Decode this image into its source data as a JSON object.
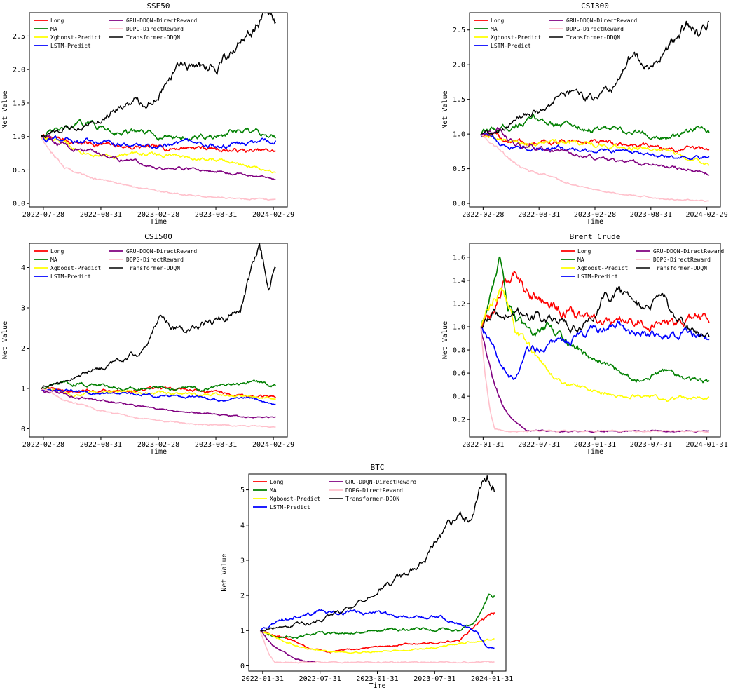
{
  "legend_entries": [
    "Long",
    "MA",
    "Xgboost-Predict",
    "LSTM-Predict",
    "GRU-DDQN-DirectReward",
    "DDPG-DirectReward",
    "Transformer-DDQN"
  ],
  "colors": {
    "Long": "#ff0000",
    "MA": "#008000",
    "Xgboost-Predict": "#ffff00",
    "LSTM-Predict": "#0000ff",
    "GRU-DDQN-DirectReward": "#800080",
    "DDPG-DirectReward": "#ffc0cb",
    "Transformer-DDQN": "#000000"
  },
  "chart_data": [
    {
      "type": "line",
      "title": "SSE50",
      "xlabel": "Time",
      "ylabel": "Net Value",
      "xticks": [
        "2022-07-28",
        "2022-08-31",
        "2023-02-28",
        "2023-08-31",
        "2024-02-29"
      ],
      "yticks": [
        "0.0",
        "0.5",
        "1.0",
        "1.5",
        "2.0",
        "2.5"
      ],
      "ylim": [
        -0.05,
        2.85
      ],
      "legend_loc": "upper-left",
      "series": [
        {
          "name": "Long",
          "x": [
            0,
            0.08,
            0.2,
            0.35,
            0.5,
            0.65,
            0.8,
            0.9,
            1
          ],
          "y": [
            1.0,
            0.95,
            0.9,
            0.85,
            0.82,
            0.85,
            0.8,
            0.78,
            0.78
          ]
        },
        {
          "name": "MA",
          "x": [
            0,
            0.1,
            0.2,
            0.3,
            0.4,
            0.55,
            0.7,
            0.8,
            0.9,
            1
          ],
          "y": [
            1.0,
            1.1,
            1.2,
            1.1,
            1.05,
            1.0,
            0.98,
            1.05,
            1.05,
            1.0
          ]
        },
        {
          "name": "Xgboost-Predict",
          "x": [
            0,
            0.1,
            0.2,
            0.3,
            0.45,
            0.6,
            0.75,
            0.85,
            1
          ],
          "y": [
            1.0,
            0.88,
            0.78,
            0.72,
            0.75,
            0.7,
            0.65,
            0.58,
            0.48
          ]
        },
        {
          "name": "LSTM-Predict",
          "x": [
            0,
            0.15,
            0.3,
            0.45,
            0.6,
            0.75,
            0.85,
            0.92,
            1
          ],
          "y": [
            1.0,
            0.95,
            0.88,
            0.85,
            0.88,
            0.85,
            0.88,
            0.92,
            0.92
          ]
        },
        {
          "name": "GRU-DDQN-DirectReward",
          "x": [
            0,
            0.1,
            0.2,
            0.3,
            0.45,
            0.55,
            0.7,
            0.85,
            1
          ],
          "y": [
            1.0,
            0.88,
            0.78,
            0.7,
            0.58,
            0.52,
            0.5,
            0.45,
            0.36
          ]
        },
        {
          "name": "DDPG-DirectReward",
          "x": [
            0,
            0.05,
            0.1,
            0.2,
            0.35,
            0.5,
            0.65,
            0.8,
            1
          ],
          "y": [
            1.0,
            0.75,
            0.55,
            0.4,
            0.28,
            0.18,
            0.12,
            0.08,
            0.05
          ]
        },
        {
          "name": "Transformer-DDQN",
          "x": [
            0,
            0.1,
            0.2,
            0.3,
            0.4,
            0.45,
            0.55,
            0.6,
            0.7,
            0.75,
            0.85,
            0.9,
            0.95,
            1
          ],
          "y": [
            1.0,
            1.1,
            1.2,
            1.4,
            1.55,
            1.45,
            1.9,
            2.05,
            2.0,
            2.1,
            2.3,
            2.55,
            2.8,
            2.75
          ]
        }
      ]
    },
    {
      "type": "line",
      "title": "CSI300",
      "xlabel": "Time",
      "ylabel": "Net Value",
      "xticks": [
        "2022-02-28",
        "2022-08-31",
        "2023-02-28",
        "2023-08-31",
        "2024-02-29"
      ],
      "yticks": [
        "0.0",
        "0.5",
        "1.0",
        "1.5",
        "2.0",
        "2.5"
      ],
      "ylim": [
        -0.05,
        2.75
      ],
      "legend_loc": "upper-left",
      "series": [
        {
          "name": "Long",
          "x": [
            0,
            0.1,
            0.25,
            0.4,
            0.55,
            0.7,
            0.85,
            1
          ],
          "y": [
            1.0,
            0.92,
            0.85,
            0.9,
            0.85,
            0.85,
            0.78,
            0.78
          ]
        },
        {
          "name": "MA",
          "x": [
            0,
            0.1,
            0.25,
            0.4,
            0.55,
            0.7,
            0.85,
            0.95,
            1
          ],
          "y": [
            1.0,
            1.1,
            1.2,
            1.12,
            1.05,
            1.0,
            0.95,
            1.08,
            1.0
          ]
        },
        {
          "name": "Xgboost-Predict",
          "x": [
            0,
            0.1,
            0.25,
            0.4,
            0.55,
            0.7,
            0.85,
            1
          ],
          "y": [
            1.0,
            0.9,
            0.85,
            0.88,
            0.82,
            0.8,
            0.72,
            0.55
          ]
        },
        {
          "name": "LSTM-Predict",
          "x": [
            0,
            0.1,
            0.25,
            0.4,
            0.55,
            0.7,
            0.85,
            1
          ],
          "y": [
            1.0,
            0.85,
            0.78,
            0.8,
            0.78,
            0.72,
            0.68,
            0.65
          ]
        },
        {
          "name": "GRU-DDQN-DirectReward",
          "x": [
            0,
            0.08,
            0.15,
            0.3,
            0.45,
            0.6,
            0.75,
            0.9,
            1
          ],
          "y": [
            1.0,
            1.05,
            0.85,
            0.78,
            0.68,
            0.6,
            0.55,
            0.5,
            0.42
          ]
        },
        {
          "name": "DDPG-DirectReward",
          "x": [
            0,
            0.1,
            0.2,
            0.35,
            0.5,
            0.65,
            0.8,
            1
          ],
          "y": [
            1.0,
            0.7,
            0.5,
            0.32,
            0.2,
            0.12,
            0.06,
            0.03
          ]
        },
        {
          "name": "Transformer-DDQN",
          "x": [
            0,
            0.1,
            0.2,
            0.3,
            0.4,
            0.5,
            0.6,
            0.65,
            0.75,
            0.85,
            0.9,
            0.95,
            1
          ],
          "y": [
            1.0,
            1.1,
            1.3,
            1.35,
            1.6,
            1.5,
            1.75,
            2.05,
            2.0,
            2.3,
            2.65,
            2.45,
            2.6
          ]
        }
      ]
    },
    {
      "type": "line",
      "title": "CSI500",
      "xlabel": "Time",
      "ylabel": "Net Value",
      "xticks": [
        "2022-02-28",
        "2022-08-31",
        "2023-02-28",
        "2023-08-31",
        "2024-02-29"
      ],
      "yticks": [
        "0",
        "1",
        "2",
        "3",
        "4"
      ],
      "ylim": [
        -0.2,
        4.6
      ],
      "legend_loc": "upper-left",
      "series": [
        {
          "name": "Long",
          "x": [
            0,
            0.15,
            0.3,
            0.5,
            0.7,
            0.85,
            1
          ],
          "y": [
            1.0,
            0.92,
            0.95,
            0.98,
            0.95,
            0.85,
            0.78
          ]
        },
        {
          "name": "MA",
          "x": [
            0,
            0.1,
            0.3,
            0.5,
            0.7,
            0.85,
            0.9,
            1
          ],
          "y": [
            1.0,
            1.15,
            1.05,
            1.0,
            0.98,
            1.1,
            1.2,
            1.05
          ]
        },
        {
          "name": "Xgboost-Predict",
          "x": [
            0,
            0.15,
            0.3,
            0.5,
            0.7,
            0.85,
            1
          ],
          "y": [
            1.0,
            0.85,
            0.9,
            0.88,
            0.85,
            0.8,
            0.75
          ]
        },
        {
          "name": "LSTM-Predict",
          "x": [
            0,
            0.15,
            0.3,
            0.5,
            0.65,
            0.75,
            0.9,
            1
          ],
          "y": [
            1.0,
            0.95,
            0.85,
            0.82,
            0.8,
            0.7,
            0.75,
            0.6
          ]
        },
        {
          "name": "GRU-DDQN-DirectReward",
          "x": [
            0,
            0.15,
            0.3,
            0.5,
            0.7,
            0.85,
            1
          ],
          "y": [
            1.0,
            0.8,
            0.65,
            0.5,
            0.38,
            0.3,
            0.28
          ]
        },
        {
          "name": "DDPG-DirectReward",
          "x": [
            0,
            0.1,
            0.25,
            0.4,
            0.6,
            0.8,
            1
          ],
          "y": [
            1.0,
            0.7,
            0.45,
            0.28,
            0.15,
            0.08,
            0.06
          ]
        },
        {
          "name": "Transformer-DDQN",
          "x": [
            0,
            0.15,
            0.3,
            0.45,
            0.5,
            0.6,
            0.7,
            0.8,
            0.85,
            0.9,
            0.93,
            0.97,
            1
          ],
          "y": [
            1.0,
            1.3,
            1.6,
            2.0,
            2.8,
            2.5,
            2.6,
            2.8,
            3.0,
            4.0,
            4.3,
            3.6,
            3.9
          ]
        }
      ]
    },
    {
      "type": "line",
      "title": "Brent Crude",
      "xlabel": "Time",
      "ylabel": "Net Value",
      "xticks": [
        "2022-01-31",
        "2022-07-31",
        "2023-01-31",
        "2023-07-31",
        "2024-01-31"
      ],
      "yticks": [
        "0.2",
        "0.4",
        "0.6",
        "0.8",
        "1.0",
        "1.2",
        "1.4",
        "1.6"
      ],
      "ylim": [
        0.05,
        1.72
      ],
      "legend_loc": "upper-center",
      "series": [
        {
          "name": "Long",
          "x": [
            0,
            0.05,
            0.1,
            0.15,
            0.2,
            0.3,
            0.4,
            0.5,
            0.6,
            0.7,
            0.8,
            0.9,
            1
          ],
          "y": [
            1.0,
            1.1,
            1.35,
            1.5,
            1.35,
            1.2,
            1.1,
            1.05,
            1.0,
            1.05,
            1.0,
            1.05,
            1.1
          ]
        },
        {
          "name": "MA",
          "x": [
            0,
            0.05,
            0.08,
            0.12,
            0.2,
            0.3,
            0.4,
            0.5,
            0.6,
            0.7,
            0.8,
            0.9,
            1
          ],
          "y": [
            1.0,
            1.3,
            1.65,
            1.2,
            0.95,
            1.0,
            0.85,
            0.7,
            0.62,
            0.55,
            0.62,
            0.55,
            0.52
          ]
        },
        {
          "name": "Xgboost-Predict",
          "x": [
            0,
            0.05,
            0.1,
            0.15,
            0.2,
            0.3,
            0.4,
            0.5,
            0.6,
            0.7,
            0.8,
            0.9,
            1
          ],
          "y": [
            1.0,
            1.2,
            1.35,
            1.0,
            0.85,
            0.6,
            0.5,
            0.45,
            0.42,
            0.4,
            0.38,
            0.38,
            0.38
          ]
        },
        {
          "name": "LSTM-Predict",
          "x": [
            0,
            0.05,
            0.1,
            0.15,
            0.2,
            0.3,
            0.4,
            0.5,
            0.6,
            0.7,
            0.8,
            0.9,
            1
          ],
          "y": [
            1.0,
            0.8,
            0.65,
            0.55,
            0.75,
            0.85,
            0.9,
            0.95,
            1.0,
            0.95,
            0.9,
            0.95,
            0.9
          ]
        },
        {
          "name": "GRU-DDQN-DirectReward",
          "x": [
            0,
            0.03,
            0.06,
            0.1,
            0.15,
            0.2,
            0.3,
            0.4,
            0.5,
            0.6,
            0.7,
            0.8,
            0.9,
            1
          ],
          "y": [
            1.0,
            0.75,
            0.5,
            0.3,
            0.18,
            0.11,
            0.1,
            0.1,
            0.1,
            0.1,
            0.1,
            0.1,
            0.1,
            0.1
          ]
        },
        {
          "name": "DDPG-DirectReward",
          "x": [
            0,
            0.02,
            0.04,
            0.06,
            0.1,
            0.2,
            0.4,
            0.6,
            0.8,
            1
          ],
          "y": [
            1.0,
            0.6,
            0.3,
            0.12,
            0.1,
            0.1,
            0.1,
            0.1,
            0.1,
            0.1
          ]
        },
        {
          "name": "Transformer-DDQN",
          "x": [
            0,
            0.05,
            0.1,
            0.2,
            0.3,
            0.4,
            0.5,
            0.55,
            0.6,
            0.7,
            0.8,
            0.9,
            1
          ],
          "y": [
            1.0,
            1.1,
            1.15,
            1.1,
            1.05,
            1.0,
            1.1,
            1.35,
            1.3,
            1.15,
            1.2,
            1.0,
            0.9
          ]
        }
      ]
    },
    {
      "type": "line",
      "title": "BTC",
      "xlabel": "Time",
      "ylabel": "Net Value",
      "xticks": [
        "2022-01-31",
        "2022-07-31",
        "2023-01-31",
        "2023-07-31",
        "2024-01-31"
      ],
      "yticks": [
        "0",
        "1",
        "2",
        "3",
        "4",
        "5"
      ],
      "ylim": [
        -0.15,
        5.45
      ],
      "legend_loc": "upper-left",
      "series": [
        {
          "name": "Long",
          "x": [
            0,
            0.1,
            0.2,
            0.3,
            0.45,
            0.6,
            0.75,
            0.85,
            0.9,
            0.95,
            1
          ],
          "y": [
            1.0,
            0.8,
            0.5,
            0.4,
            0.5,
            0.6,
            0.65,
            0.7,
            1.0,
            1.3,
            1.5
          ]
        },
        {
          "name": "MA",
          "x": [
            0,
            0.1,
            0.25,
            0.4,
            0.55,
            0.7,
            0.85,
            0.92,
            0.97,
            1
          ],
          "y": [
            1.0,
            0.8,
            0.9,
            0.95,
            1.0,
            1.05,
            1.0,
            1.3,
            1.9,
            2.0
          ]
        },
        {
          "name": "Xgboost-Predict",
          "x": [
            0,
            0.1,
            0.2,
            0.3,
            0.45,
            0.6,
            0.75,
            0.9,
            1
          ],
          "y": [
            1.0,
            0.7,
            0.5,
            0.4,
            0.4,
            0.45,
            0.5,
            0.7,
            0.75
          ]
        },
        {
          "name": "LSTM-Predict",
          "x": [
            0,
            0.1,
            0.2,
            0.35,
            0.45,
            0.6,
            0.75,
            0.85,
            0.92,
            0.97,
            1
          ],
          "y": [
            1.0,
            1.3,
            1.5,
            1.55,
            1.5,
            1.4,
            1.4,
            1.2,
            1.0,
            0.5,
            0.5
          ]
        },
        {
          "name": "GRU-DDQN-DirectReward",
          "x": [
            0,
            0.05,
            0.1,
            0.15,
            0.2,
            0.25
          ],
          "y": [
            1.0,
            0.6,
            0.4,
            0.2,
            0.12,
            0.1
          ]
        },
        {
          "name": "DDPG-DirectReward",
          "x": [
            0,
            0.02,
            0.04,
            0.06,
            0.2,
            0.5,
            0.8,
            1
          ],
          "y": [
            1.0,
            0.6,
            0.3,
            0.1,
            0.1,
            0.1,
            0.1,
            0.1
          ]
        },
        {
          "name": "Transformer-DDQN",
          "x": [
            0,
            0.1,
            0.2,
            0.3,
            0.4,
            0.5,
            0.6,
            0.7,
            0.8,
            0.9,
            0.95,
            0.97,
            1
          ],
          "y": [
            1.0,
            1.15,
            1.2,
            1.4,
            1.6,
            2.2,
            2.5,
            3.0,
            4.0,
            4.2,
            5.0,
            5.2,
            5.1
          ]
        }
      ]
    }
  ]
}
